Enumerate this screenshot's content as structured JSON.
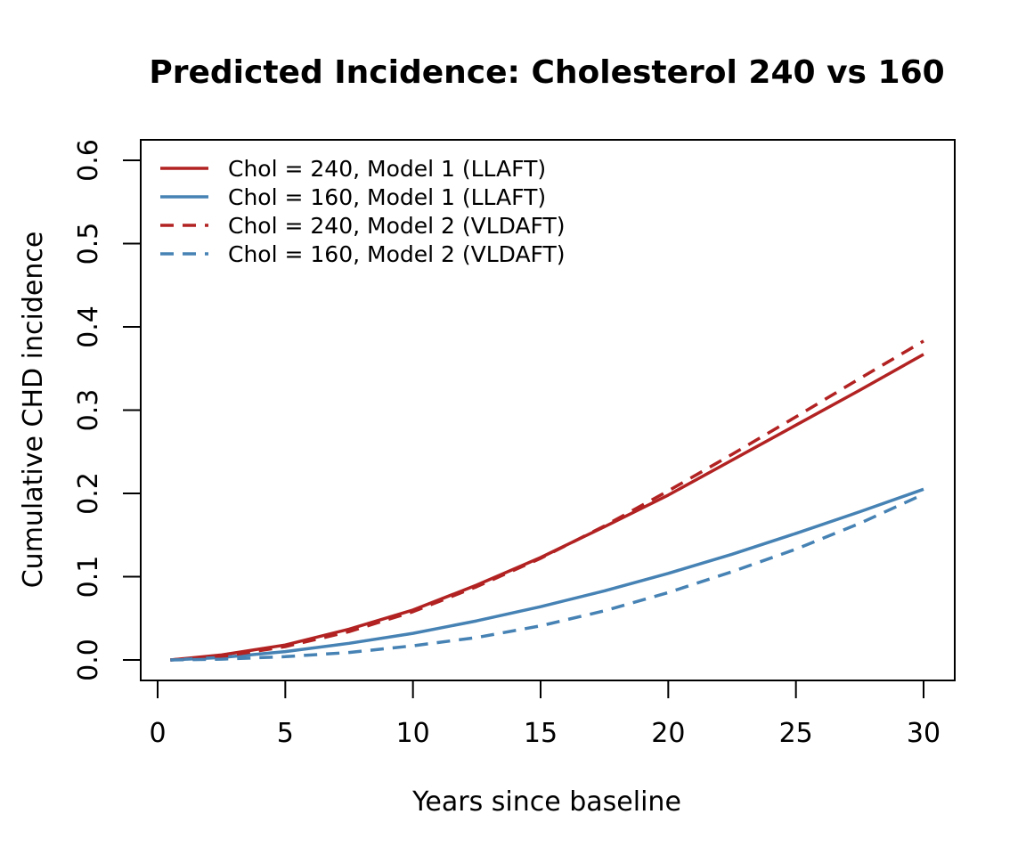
{
  "chart_data": {
    "type": "line",
    "title": "Predicted Incidence: Cholesterol 240 vs 160",
    "xlabel": "Years since baseline",
    "ylabel": "Cumulative CHD incidence",
    "xlim": [
      0,
      30
    ],
    "ylim": [
      0,
      0.6
    ],
    "xticks": [
      "0",
      "5",
      "10",
      "15",
      "20",
      "25",
      "30"
    ],
    "yticks": [
      "0.0",
      "0.1",
      "0.2",
      "0.3",
      "0.4",
      "0.5",
      "0.6"
    ],
    "grid": false,
    "legend_position": "top-left",
    "x": [
      0.5,
      2.5,
      5,
      7.5,
      10,
      12.5,
      15,
      17.5,
      20,
      22.5,
      25,
      27.5,
      30
    ],
    "series": [
      {
        "name": "Chol = 240, Model 1 (LLAFT)",
        "color": "#B22222",
        "dash": "solid",
        "values": [
          0.0,
          0.006,
          0.018,
          0.037,
          0.06,
          0.09,
          0.123,
          0.16,
          0.198,
          0.24,
          0.282,
          0.324,
          0.367
        ]
      },
      {
        "name": "Chol = 160, Model 1 (LLAFT)",
        "color": "#4682B4",
        "dash": "solid",
        "values": [
          0.0,
          0.003,
          0.01,
          0.02,
          0.032,
          0.047,
          0.064,
          0.083,
          0.104,
          0.127,
          0.152,
          0.178,
          0.205
        ]
      },
      {
        "name": "Chol = 240, Model 2 (VLDAFT)",
        "color": "#B22222",
        "dash": "dashed",
        "values": [
          0.0,
          0.004,
          0.016,
          0.034,
          0.058,
          0.088,
          0.122,
          0.161,
          0.203,
          0.247,
          0.292,
          0.338,
          0.383
        ]
      },
      {
        "name": "Chol = 160, Model 2 (VLDAFT)",
        "color": "#4682B4",
        "dash": "dashed",
        "values": [
          0.0,
          0.001,
          0.004,
          0.009,
          0.017,
          0.027,
          0.041,
          0.059,
          0.081,
          0.106,
          0.133,
          0.164,
          0.199
        ]
      }
    ]
  }
}
